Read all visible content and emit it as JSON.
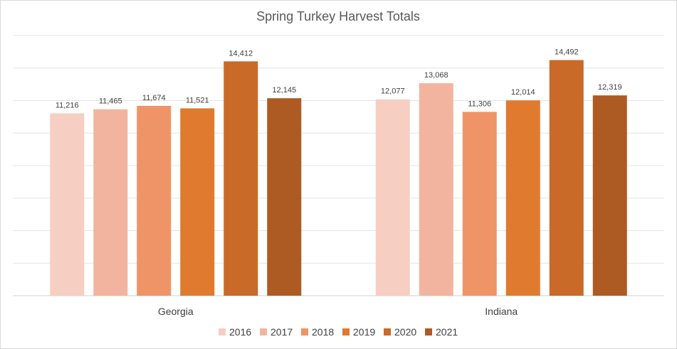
{
  "chart_data": {
    "type": "bar",
    "title": "Spring Turkey Harvest Totals",
    "categories": [
      "Georgia",
      "Indiana"
    ],
    "series": [
      {
        "name": "2016",
        "values": [
          11216,
          12077
        ],
        "labels": [
          "11,216",
          "12,077"
        ],
        "color": "#f6cfc2"
      },
      {
        "name": "2017",
        "values": [
          11465,
          13068
        ],
        "labels": [
          "11,465",
          "13,068"
        ],
        "color": "#f3b49f"
      },
      {
        "name": "2018",
        "values": [
          11674,
          11306
        ],
        "labels": [
          "11,674",
          "11,306"
        ],
        "color": "#ef9466"
      },
      {
        "name": "2019",
        "values": [
          11521,
          12014
        ],
        "labels": [
          "11,521",
          "12,014"
        ],
        "color": "#e07a2f"
      },
      {
        "name": "2020",
        "values": [
          14412,
          14492
        ],
        "labels": [
          "14,412",
          "14,492"
        ],
        "color": "#c96a28"
      },
      {
        "name": "2021",
        "values": [
          12145,
          12319
        ],
        "labels": [
          "12,145",
          "12,319"
        ],
        "color": "#ad5a23"
      }
    ],
    "ylim": [
      0,
      16000
    ],
    "grid": true,
    "legend": "bottom"
  }
}
